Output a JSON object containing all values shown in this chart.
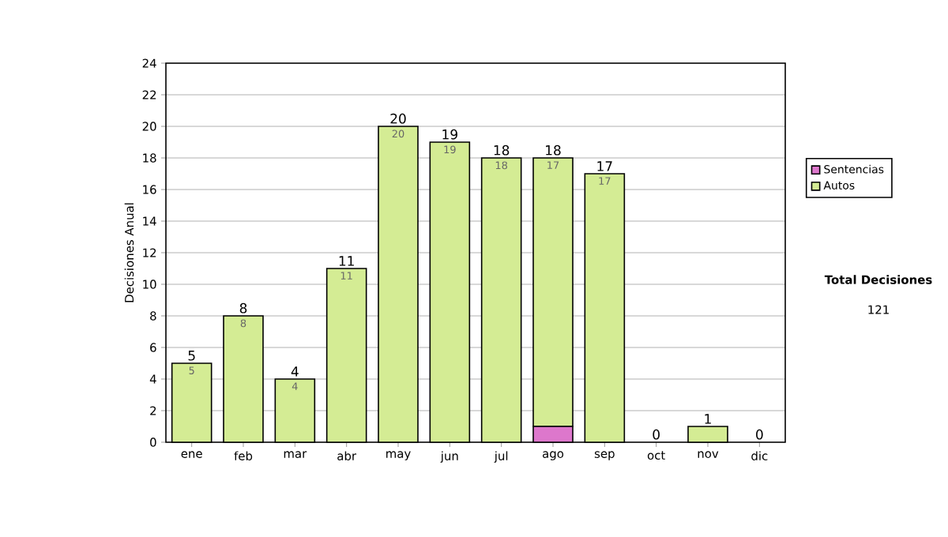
{
  "chart_data": {
    "type": "bar",
    "stacked": true,
    "ylabel": "Decisiones Anual",
    "categories": [
      "ene",
      "feb",
      "mar",
      "abr",
      "may",
      "jun",
      "jul",
      "ago",
      "sep",
      "oct",
      "nov",
      "dic"
    ],
    "series": [
      {
        "name": "Sentencias",
        "color": "#dd77cc",
        "values": [
          0,
          0,
          0,
          0,
          0,
          0,
          0,
          1,
          0,
          0,
          0,
          0
        ]
      },
      {
        "name": "Autos",
        "color": "#d4ec94",
        "values": [
          5,
          8,
          4,
          11,
          20,
          19,
          18,
          17,
          17,
          0,
          1,
          0
        ],
        "value_labels": [
          "5",
          "8",
          "4",
          "11",
          "20",
          "19",
          "18",
          "17",
          "17",
          null,
          null,
          null
        ]
      }
    ],
    "totals": [
      "5",
      "8",
      "4",
      "11",
      "20",
      "19",
      "18",
      "18",
      "17",
      "0",
      "1",
      "0"
    ],
    "ylim": [
      0,
      24
    ],
    "yticks": [
      0,
      2,
      4,
      6,
      8,
      10,
      12,
      14,
      16,
      18,
      20,
      22,
      24
    ],
    "grid": "y",
    "legend": "right",
    "annotations": [
      "**Total Decisiones**",
      "121"
    ]
  }
}
